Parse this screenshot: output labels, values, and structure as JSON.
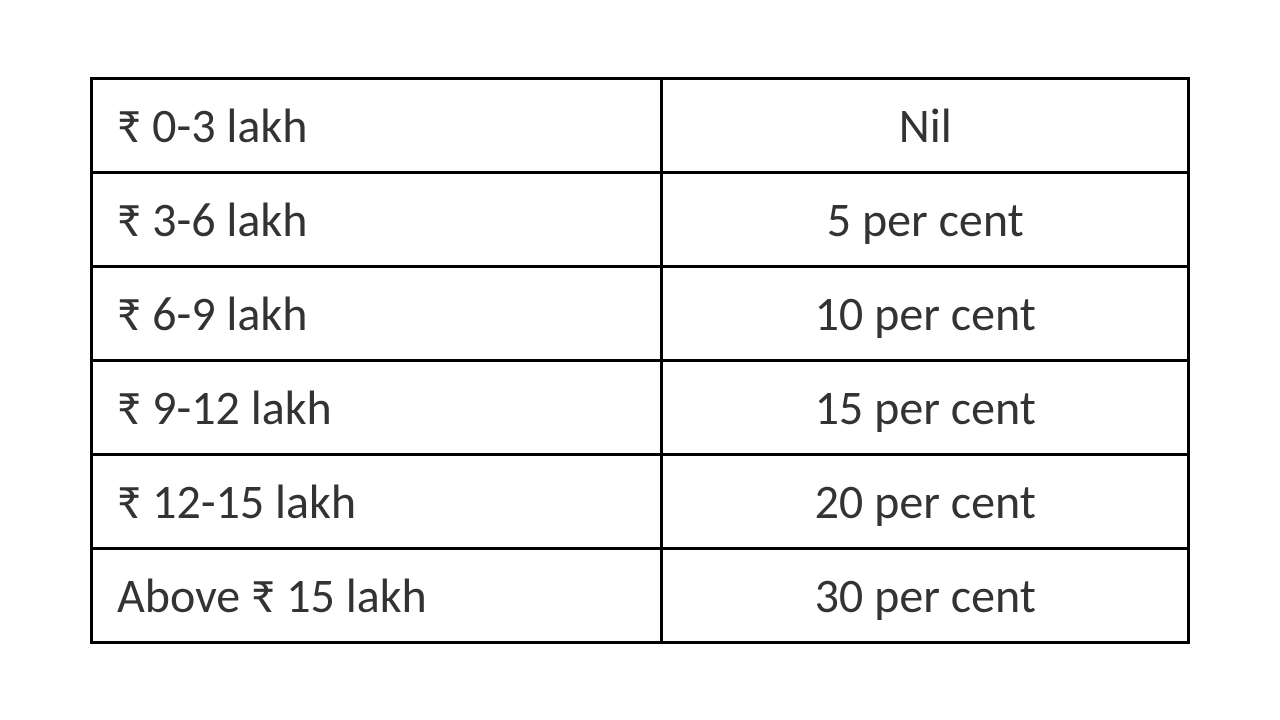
{
  "table": {
    "type": "table",
    "border_color": "#000000",
    "border_width": 3,
    "background_color": "#ffffff",
    "text_color": "#333333",
    "font_size": 48,
    "font_family": "Calibri",
    "columns": [
      {
        "width_pct": 52,
        "align": "left"
      },
      {
        "width_pct": 48,
        "align": "center"
      }
    ],
    "rows": [
      {
        "slab": "₹ 0-3 lakh",
        "rate": "Nil"
      },
      {
        "slab": "₹ 3-6 lakh",
        "rate": "5 per cent"
      },
      {
        "slab": "₹ 6-9 lakh",
        "rate": "10 per cent"
      },
      {
        "slab": "₹ 9-12 lakh",
        "rate": "15 per cent"
      },
      {
        "slab": "₹ 12-15 lakh",
        "rate": "20 per cent"
      },
      {
        "slab": "Above ₹ 15 lakh",
        "rate": "30 per cent"
      }
    ]
  }
}
